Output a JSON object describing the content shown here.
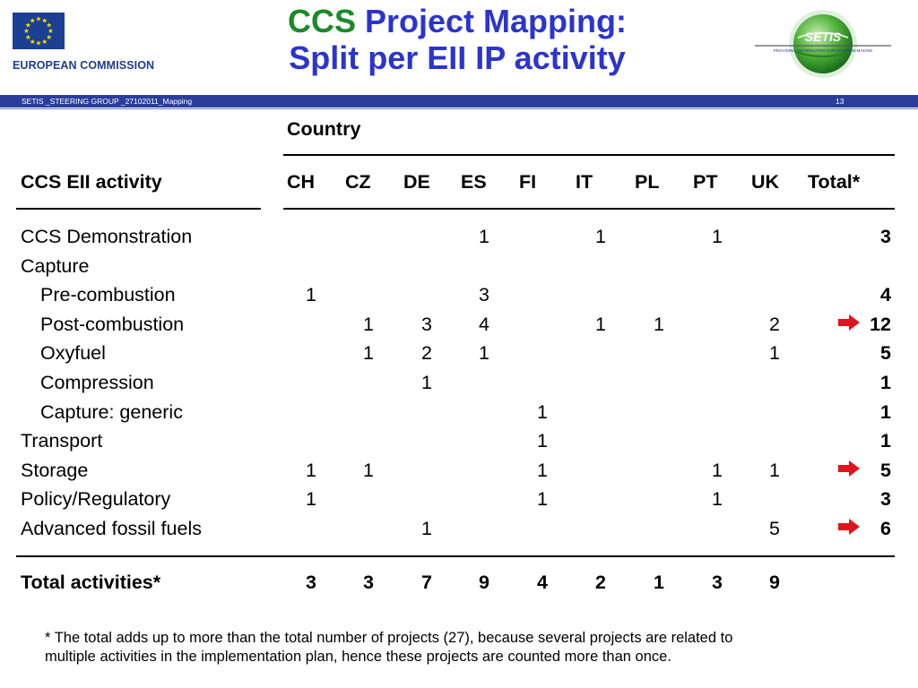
{
  "header": {
    "org_name": "EUROPEAN COMMISSION",
    "title_ccs": "CCS",
    "title_rest": "Project Mapping:",
    "title_line2": "Split per EII IP activity",
    "setis_logo_text": "SETIS",
    "setis_tagline": "PROVIDING INFORMATION FOR DECISION-MAKING"
  },
  "band": {
    "left_text": "SETIS _STEERING GROUP _27102011_Mapping",
    "page_number": "13"
  },
  "table": {
    "country_label": "Country",
    "activity_header": "CCS EII activity",
    "countries": [
      "CH",
      "CZ",
      "DE",
      "ES",
      "FI",
      "IT",
      "PL",
      "PT",
      "UK"
    ],
    "total_header": "Total*",
    "rows": [
      {
        "label": "CCS Demonstration",
        "indent": false,
        "values": {
          "ES": "1",
          "IT": "1",
          "PT": "1"
        },
        "total": "3",
        "arrow": false
      },
      {
        "label": "Capture",
        "indent": false,
        "values": {},
        "total": "",
        "arrow": false
      },
      {
        "label": "Pre-combustion",
        "indent": true,
        "values": {
          "CH": "1",
          "ES": "3"
        },
        "total": "4",
        "arrow": false
      },
      {
        "label": "Post-combustion",
        "indent": true,
        "values": {
          "CZ": "1",
          "DE": "3",
          "ES": "4",
          "IT": "1",
          "PL": "1",
          "UK": "2"
        },
        "total": "12",
        "arrow": true
      },
      {
        "label": "Oxyfuel",
        "indent": true,
        "values": {
          "CZ": "1",
          "DE": "2",
          "ES": "1",
          "UK": "1"
        },
        "total": "5",
        "arrow": false
      },
      {
        "label": "Compression",
        "indent": true,
        "values": {
          "DE": "1"
        },
        "total": "1",
        "arrow": false
      },
      {
        "label": "Capture: generic",
        "indent": true,
        "values": {
          "FI": "1"
        },
        "total": "1",
        "arrow": false
      },
      {
        "label": "Transport",
        "indent": false,
        "values": {
          "FI": "1"
        },
        "total": "1",
        "arrow": false
      },
      {
        "label": "Storage",
        "indent": false,
        "values": {
          "CH": "1",
          "CZ": "1",
          "FI": "1",
          "PT": "1",
          "UK": "1"
        },
        "total": "5",
        "arrow": true
      },
      {
        "label": "Policy/Regulatory",
        "indent": false,
        "values": {
          "CH": "1",
          "FI": "1",
          "PT": "1"
        },
        "total": "3",
        "arrow": false
      },
      {
        "label": "Advanced fossil fuels",
        "indent": false,
        "values": {
          "DE": "1",
          "UK": "5"
        },
        "total": "6",
        "arrow": true
      }
    ],
    "totals_label": "Total activities*",
    "totals": [
      "3",
      "3",
      "7",
      "9",
      "4",
      "2",
      "1",
      "3",
      "9"
    ]
  },
  "footnote_line1": "* The total adds up to more than the total number of projects (27), because several projects are related to",
  "footnote_line2": "multiple activities in the implementation plan, hence these projects are counted more than once.",
  "colors": {
    "title_blue": "#2b35cc",
    "title_green": "#1a8b28",
    "band_blue": "#2a3d9a",
    "arrow_red": "#e0141b"
  }
}
